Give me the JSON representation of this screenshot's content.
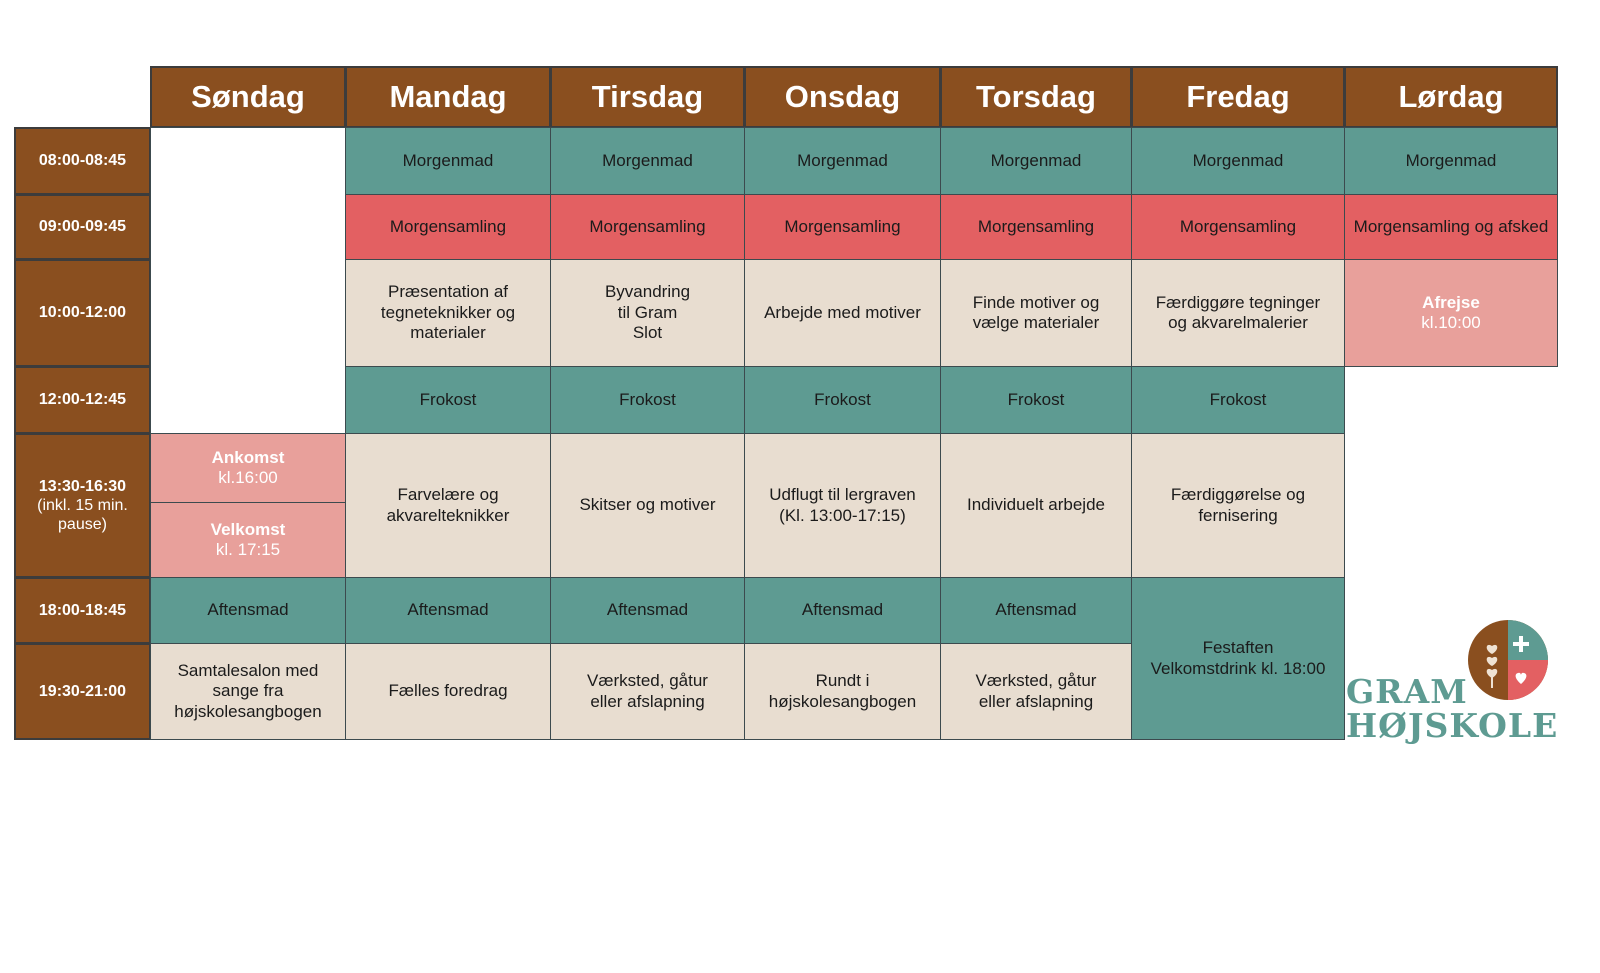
{
  "days": [
    "Søndag",
    "Mandag",
    "Tirsdag",
    "Onsdag",
    "Torsdag",
    "Fredag",
    "Lørdag"
  ],
  "times": {
    "t1": "08:00-08:45",
    "t2": "09:00-09:45",
    "t3": "10:00-12:00",
    "t4": "12:00-12:45",
    "t5": "13:30-16:30",
    "t5_sub": "(inkl. 15 min. pause)",
    "t6": "18:00-18:45",
    "t7": "19:30-21:00"
  },
  "schedule": {
    "morgenmad": "Morgenmad",
    "morgensamling": "Morgensamling",
    "morgensamling_lordag": "Morgensamling og afsked",
    "frokost": "Frokost",
    "aftensmad": "Aftensmad",
    "mon_am": "Præsentation af tegneteknikker og materialer",
    "tue_am": "Byvandring til Gram Slot",
    "wed_am": "Arbejde med motiver",
    "thu_am": "Finde motiver og vælge materialer",
    "fri_am": "Færdiggøre tegninger og akvarelmalerier",
    "sat_afrejse": "Afrejse",
    "sat_afrejse_time": "kl.10:00",
    "sun_ankomst": "Ankomst",
    "sun_ankomst_time": "kl.16:00",
    "sun_velkomst": "Velkomst",
    "sun_velkomst_time": "kl. 17:15",
    "mon_pm": "Farvelære og akvarelteknikker",
    "tue_pm": "Skitser og motiver",
    "wed_pm": "Udflugt til lergraven",
    "wed_pm_time": "(Kl. 13:00-17:15)",
    "thu_pm": "Individuelt arbejde",
    "fri_pm": "Færdiggørelse og fernisering",
    "sun_eve": "Samtalesalon med sange fra højskolesangbogen",
    "mon_eve": "Fælles foredrag",
    "tue_eve": "Værksted, gåtur eller afslapning",
    "wed_eve": "Rundt i højskolesangbogen",
    "thu_eve": "Værksted, gåtur eller afslapning",
    "fri_festaften": "Festaften",
    "fri_festaften_sub": "Velkomstdrink kl. 18:00"
  },
  "logo": {
    "line1": "GRAM",
    "line2": "HØJSKOLE"
  },
  "colors": {
    "brown": "#8a4f1f",
    "teal": "#5e9b92",
    "red": "#e36062",
    "beige": "#e8ddd0",
    "pink": "#e8a09b"
  }
}
